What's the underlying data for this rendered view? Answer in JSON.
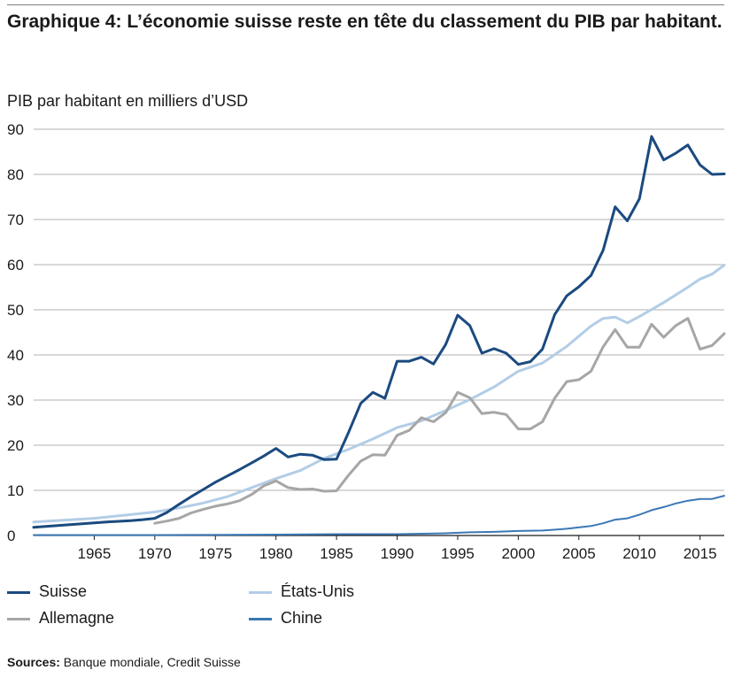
{
  "title": "Graphique 4: L’économie suisse reste en tête du classement du PIB par habitant.",
  "source_label": "Sources:",
  "source_text": " Banque mondiale, Credit Suisse",
  "colors": {
    "suisse": "#1b4a7f",
    "etats_unis": "#b3cde6",
    "allemagne": "#a6a6a6",
    "chine": "#3b78b5",
    "grid": "#b0b0b0",
    "axis": "#1a1a1a"
  },
  "chart_data": {
    "type": "line",
    "ylabel": "PIB par habitant en milliers d’USD",
    "xlabel": "",
    "ylim": [
      0,
      90
    ],
    "xlim": [
      1960,
      2017
    ],
    "yticks": [
      0,
      10,
      20,
      30,
      40,
      50,
      60,
      70,
      80,
      90
    ],
    "xticks": [
      1965,
      1970,
      1975,
      1980,
      1985,
      1990,
      1995,
      2000,
      2005,
      2010,
      2015
    ],
    "grid": true,
    "legend_position": "bottom",
    "series": [
      {
        "name": "Suisse",
        "key": "suisse",
        "x": [
          1960,
          1962,
          1964,
          1966,
          1968,
          1969,
          1970,
          1971,
          1972,
          1973,
          1974,
          1975,
          1976,
          1977,
          1978,
          1979,
          1980,
          1981,
          1982,
          1983,
          1984,
          1985,
          1986,
          1987,
          1988,
          1989,
          1990,
          1991,
          1992,
          1993,
          1994,
          1995,
          1996,
          1997,
          1998,
          1999,
          2000,
          2001,
          2002,
          2003,
          2004,
          2005,
          2006,
          2007,
          2008,
          2009,
          2010,
          2011,
          2012,
          2013,
          2014,
          2015,
          2016,
          2017
        ],
        "values": [
          1.8,
          2.2,
          2.6,
          3.0,
          3.3,
          3.5,
          3.8,
          5.1,
          6.9,
          8.6,
          10.2,
          11.8,
          13.2,
          14.6,
          16.1,
          17.6,
          19.3,
          17.4,
          18.0,
          17.8,
          16.8,
          16.9,
          22.9,
          29.3,
          31.7,
          30.4,
          38.6,
          38.6,
          39.5,
          38.0,
          42.3,
          48.8,
          46.5,
          40.4,
          41.4,
          40.4,
          37.9,
          38.5,
          41.3,
          48.9,
          53.1,
          55.1,
          57.6,
          63.2,
          72.8,
          69.7,
          74.6,
          88.4,
          83.2,
          84.7,
          86.5,
          82.1,
          80.0,
          80.1
        ]
      },
      {
        "name": "États-Unis",
        "key": "etats_unis",
        "x": [
          1960,
          1965,
          1970,
          1972,
          1974,
          1976,
          1978,
          1980,
          1982,
          1984,
          1986,
          1988,
          1990,
          1992,
          1994,
          1996,
          1998,
          2000,
          2002,
          2004,
          2006,
          2007,
          2008,
          2009,
          2010,
          2012,
          2014,
          2015,
          2016,
          2017
        ],
        "values": [
          3.0,
          3.8,
          5.2,
          6.1,
          7.2,
          8.6,
          10.6,
          12.6,
          14.4,
          17.1,
          19.1,
          21.4,
          23.9,
          25.4,
          27.7,
          30.1,
          32.9,
          36.4,
          38.2,
          41.9,
          46.4,
          48.1,
          48.4,
          47.1,
          48.5,
          51.6,
          55.0,
          56.8,
          57.9,
          59.9
        ]
      },
      {
        "name": "Allemagne",
        "key": "allemagne",
        "x": [
          1970,
          1971,
          1972,
          1973,
          1974,
          1975,
          1976,
          1977,
          1978,
          1979,
          1980,
          1981,
          1982,
          1983,
          1984,
          1985,
          1986,
          1987,
          1988,
          1989,
          1990,
          1991,
          1992,
          1993,
          1994,
          1995,
          1996,
          1997,
          1998,
          1999,
          2000,
          2001,
          2002,
          2003,
          2004,
          2005,
          2006,
          2007,
          2008,
          2009,
          2010,
          2011,
          2012,
          2013,
          2014,
          2015,
          2016,
          2017
        ],
        "values": [
          2.7,
          3.2,
          3.8,
          5.0,
          5.8,
          6.5,
          7.0,
          7.7,
          9.1,
          11.0,
          12.1,
          10.6,
          10.2,
          10.3,
          9.8,
          9.9,
          13.4,
          16.5,
          17.9,
          17.8,
          22.2,
          23.3,
          26.1,
          25.2,
          27.2,
          31.7,
          30.5,
          27.0,
          27.3,
          26.8,
          23.6,
          23.6,
          25.2,
          30.4,
          34.1,
          34.5,
          36.4,
          41.8,
          45.6,
          41.7,
          41.7,
          46.8,
          43.9,
          46.5,
          48.1,
          41.3,
          42.1,
          44.7
        ]
      },
      {
        "name": "Chine",
        "key": "chine",
        "x": [
          1960,
          1970,
          1980,
          1985,
          1990,
          1992,
          1994,
          1996,
          1998,
          2000,
          2002,
          2004,
          2006,
          2007,
          2008,
          2009,
          2010,
          2011,
          2012,
          2013,
          2014,
          2015,
          2016,
          2017
        ],
        "values": [
          0.1,
          0.1,
          0.2,
          0.3,
          0.3,
          0.4,
          0.5,
          0.7,
          0.8,
          1.0,
          1.1,
          1.5,
          2.1,
          2.7,
          3.5,
          3.8,
          4.6,
          5.6,
          6.3,
          7.1,
          7.7,
          8.1,
          8.1,
          8.8
        ]
      }
    ]
  }
}
